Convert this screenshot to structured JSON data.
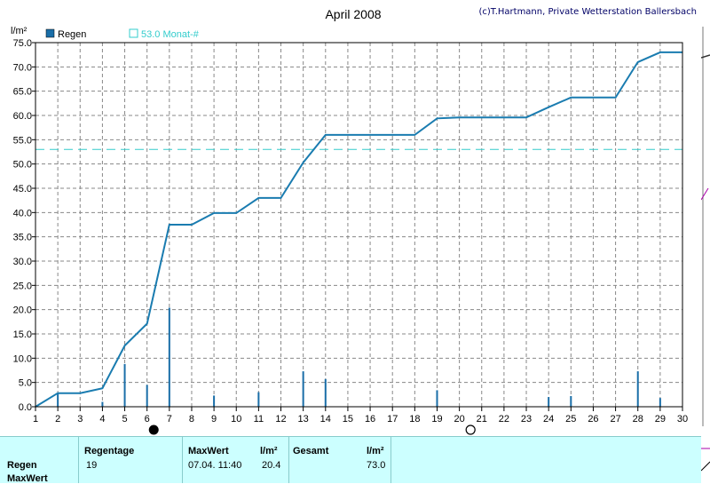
{
  "chart_data": {
    "type": "bar",
    "title": "April 2008",
    "copyright": "(c)T.Hartmann, Private Wetterstation Ballersbach",
    "ylabel": "l/m²",
    "ylim": [
      0,
      75
    ],
    "xlim": [
      1,
      30
    ],
    "grid": true,
    "yticks": [
      "0.0",
      "5.0",
      "10.0",
      "15.0",
      "20.0",
      "25.0",
      "30.0",
      "35.0",
      "40.0",
      "45.0",
      "50.0",
      "55.0",
      "60.0",
      "65.0",
      "70.0",
      "75.0"
    ],
    "xticks": [
      "1",
      "2",
      "3",
      "4",
      "5",
      "6",
      "7",
      "8",
      "9",
      "10",
      "11",
      "12",
      "13",
      "14",
      "15",
      "16",
      "17",
      "18",
      "19",
      "20",
      "21",
      "22",
      "23",
      "24",
      "25",
      "26",
      "27",
      "28",
      "29",
      "30"
    ],
    "legend": {
      "bars": "Regen",
      "reference": "53.0 Monat-#"
    },
    "reference_line": 53.0,
    "bars": [
      {
        "x": 2,
        "value": 2.8
      },
      {
        "x": 4,
        "value": 1.0
      },
      {
        "x": 5,
        "value": 8.8
      },
      {
        "x": 6,
        "value": 4.5
      },
      {
        "x": 7,
        "value": 20.4
      },
      {
        "x": 9,
        "value": 2.3
      },
      {
        "x": 11,
        "value": 3.0
      },
      {
        "x": 13,
        "value": 7.3
      },
      {
        "x": 14,
        "value": 5.7
      },
      {
        "x": 19,
        "value": 3.4
      },
      {
        "x": 24,
        "value": 2.0
      },
      {
        "x": 25,
        "value": 2.2
      },
      {
        "x": 28,
        "value": 7.3
      },
      {
        "x": 29,
        "value": 1.8
      }
    ],
    "cumulative": [
      {
        "x": 1,
        "y": 0.0
      },
      {
        "x": 2,
        "y": 2.8
      },
      {
        "x": 3,
        "y": 2.8
      },
      {
        "x": 4,
        "y": 3.8
      },
      {
        "x": 5,
        "y": 12.6
      },
      {
        "x": 6,
        "y": 17.1
      },
      {
        "x": 7,
        "y": 37.5
      },
      {
        "x": 8,
        "y": 37.5
      },
      {
        "x": 9,
        "y": 39.9
      },
      {
        "x": 10,
        "y": 39.9
      },
      {
        "x": 11,
        "y": 43.0
      },
      {
        "x": 12,
        "y": 43.0
      },
      {
        "x": 13,
        "y": 50.3
      },
      {
        "x": 14,
        "y": 56.0
      },
      {
        "x": 15,
        "y": 56.0
      },
      {
        "x": 16,
        "y": 56.0
      },
      {
        "x": 17,
        "y": 56.0
      },
      {
        "x": 18,
        "y": 56.0
      },
      {
        "x": 19,
        "y": 59.4
      },
      {
        "x": 20,
        "y": 59.6
      },
      {
        "x": 21,
        "y": 59.6
      },
      {
        "x": 22,
        "y": 59.6
      },
      {
        "x": 23,
        "y": 59.6
      },
      {
        "x": 24,
        "y": 61.7
      },
      {
        "x": 25,
        "y": 63.7
      },
      {
        "x": 26,
        "y": 63.7
      },
      {
        "x": 27,
        "y": 63.7
      },
      {
        "x": 28,
        "y": 71.0
      },
      {
        "x": 29,
        "y": 73.0
      },
      {
        "x": 30,
        "y": 73.0
      }
    ],
    "moon_phases": [
      {
        "day": 6.3,
        "phase": "new"
      },
      {
        "day": 20.5,
        "phase": "full"
      }
    ],
    "colors": {
      "bars": "#1a6ea8",
      "line": "#1a7cb0",
      "reference": "#33cccc",
      "grid": "#888888"
    }
  },
  "stats": {
    "row_labels": [
      "Regen",
      "MaxWert"
    ],
    "regentage_label": "Regentage",
    "regentage_value": "19",
    "maxwert_label": "MaxWert",
    "maxwert_unit": "l/m²",
    "maxwert_time": "07.04.  11:40",
    "maxwert_value": "20.4",
    "gesamt_label": "Gesamt",
    "gesamt_unit": "l/m²",
    "gesamt_value": "73.0"
  }
}
